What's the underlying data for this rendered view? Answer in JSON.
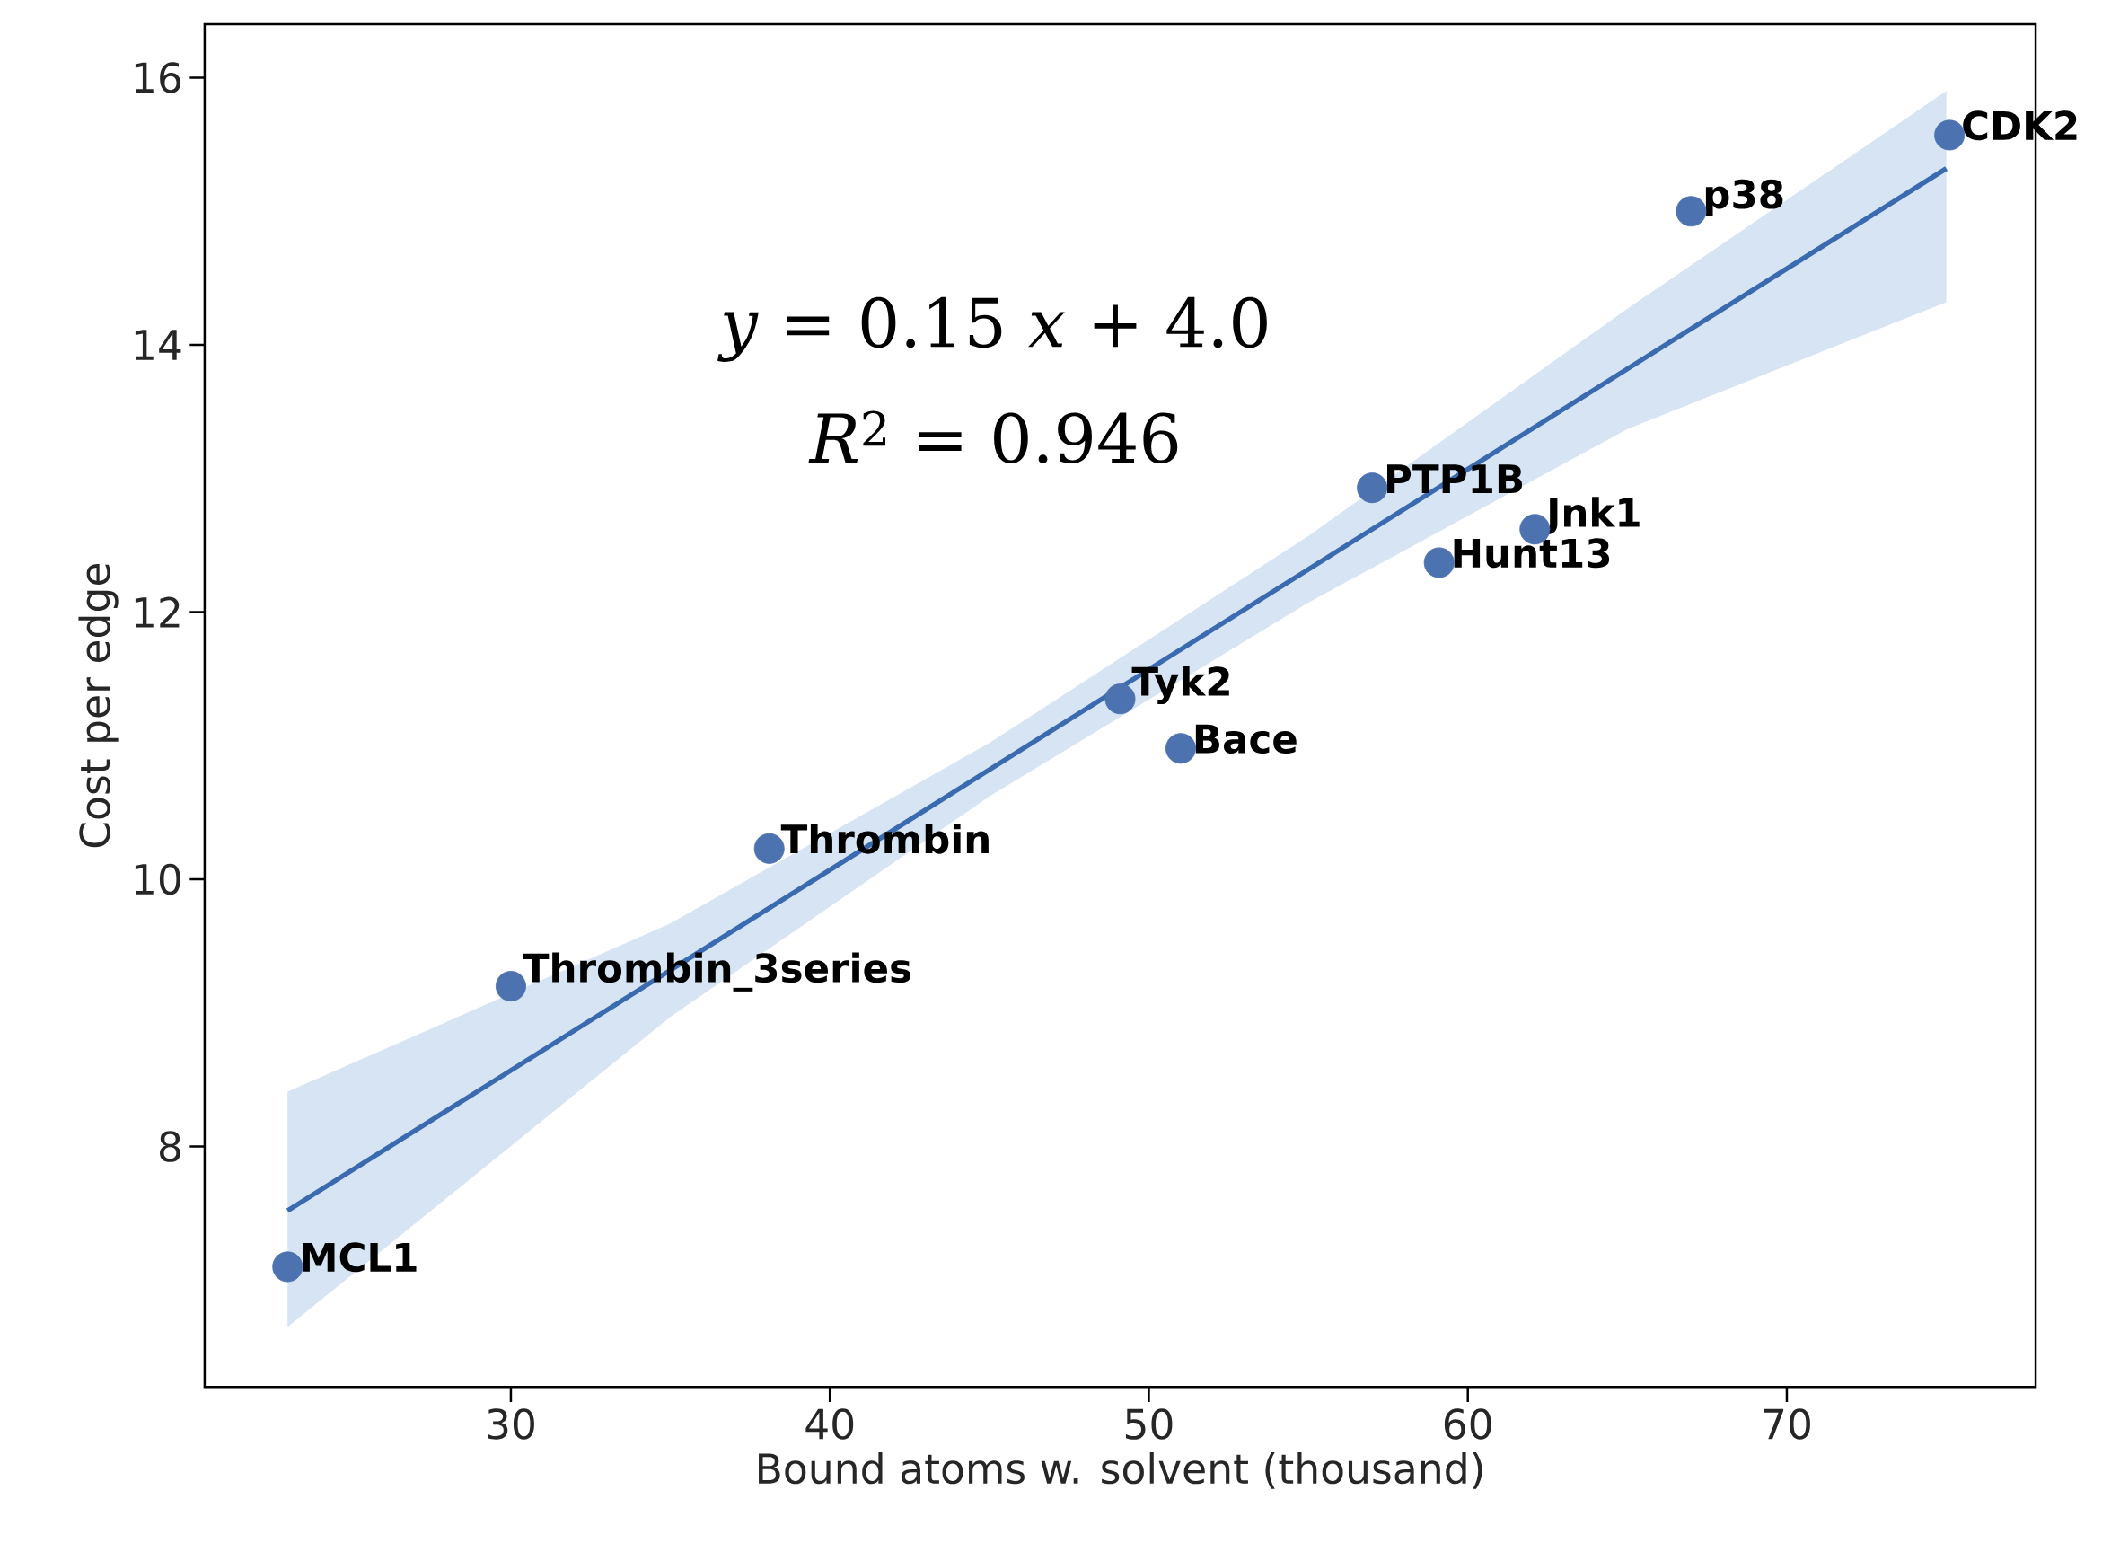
{
  "chart_data": {
    "type": "scatter",
    "xlabel": "Bound atoms w. solvent (thousand)",
    "ylabel": "Cost per edge",
    "xlim": [
      20.4,
      77.8
    ],
    "ylim": [
      6.2,
      16.4
    ],
    "xticks": [
      30,
      40,
      50,
      60,
      70
    ],
    "yticks": [
      8,
      10,
      12,
      14,
      16
    ],
    "series": [
      {
        "type": "scatter",
        "color": "#4c72b0",
        "x": [
          23.0,
          30.0,
          38.1,
          49.1,
          51.0,
          57.0,
          62.1,
          59.1,
          67.0,
          75.1
        ],
        "values": [
          7.1,
          9.2,
          10.23,
          11.35,
          10.98,
          12.93,
          12.62,
          12.37,
          15.0,
          15.57
        ]
      },
      {
        "type": "line",
        "color": "#3a6ab0",
        "x": [
          23,
          35,
          45,
          55,
          65,
          75
        ],
        "values": [
          7.52,
          9.32,
          10.82,
          12.32,
          13.82,
          15.32
        ],
        "lower": [
          6.65,
          8.97,
          10.62,
          12.07,
          13.37,
          14.32
        ],
        "upper": [
          8.41,
          9.67,
          11.02,
          12.57,
          14.27,
          15.9
        ]
      }
    ],
    "annotations": [
      {
        "text": "MCL1",
        "x": 23.0,
        "y": 7.1
      },
      {
        "text": "Thrombin_3series",
        "x": 30.0,
        "y": 9.2
      },
      {
        "text": "Thrombin",
        "x": 38.1,
        "y": 10.23
      },
      {
        "text": "Tyk2",
        "x": 49.1,
        "y": 11.35
      },
      {
        "text": "Bace",
        "x": 51.0,
        "y": 10.98
      },
      {
        "text": "PTP1B",
        "x": 57.0,
        "y": 12.93
      },
      {
        "text": "Jnk1",
        "x": 62.1,
        "y": 12.62
      },
      {
        "text": "Hunt13",
        "x": 59.1,
        "y": 12.37
      },
      {
        "text": "p38",
        "x": 67.0,
        "y": 15.0
      },
      {
        "text": "CDK2",
        "x": 75.1,
        "y": 15.57
      },
      "*y* = 0.15 *x* + 4.0",
      "*R*$^{2}$ = 0.946"
    ]
  }
}
